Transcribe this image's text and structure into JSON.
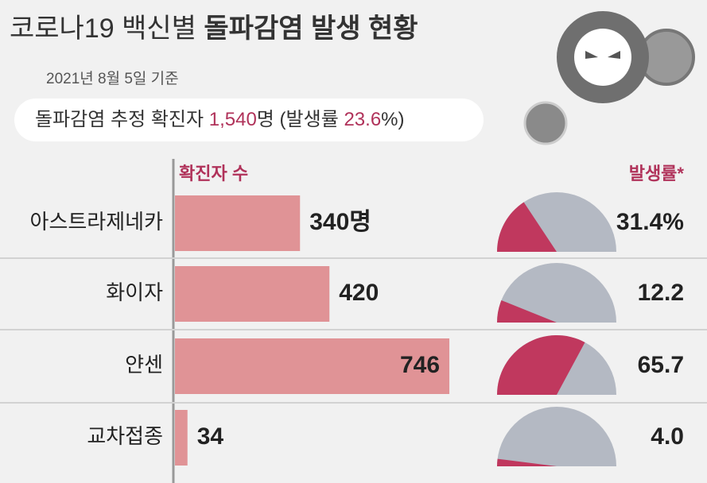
{
  "header": {
    "title_light": "코로나19 백신별",
    "title_bold": "돌파감염 발생 현황",
    "date": "2021년 8월 5일 기준",
    "summary": [
      "돌파감염 추정 확진자",
      "1,540",
      "명 (발생률",
      "23.6",
      "%)"
    ]
  },
  "chart_data": [
    {
      "type": "bar",
      "label": "확진자 수",
      "categories": [
        "아스트라제네카",
        "화이자",
        "얀센",
        "교차접종"
      ],
      "values": [
        340,
        420,
        746,
        34
      ],
      "value_labels": [
        "340명",
        "420",
        "746",
        "34"
      ],
      "color": "#e09396"
    },
    {
      "type": "gauge",
      "label": "발생률*",
      "categories": [
        "아스트라제네카",
        "화이자",
        "얀센",
        "교차접종"
      ],
      "values": [
        31.4,
        12.2,
        65.7,
        4.0
      ],
      "value_labels": [
        "31.4%",
        "12.2",
        "65.7",
        "4.0"
      ],
      "color": "#c0385e",
      "track_color": "#b4b9c3"
    }
  ]
}
